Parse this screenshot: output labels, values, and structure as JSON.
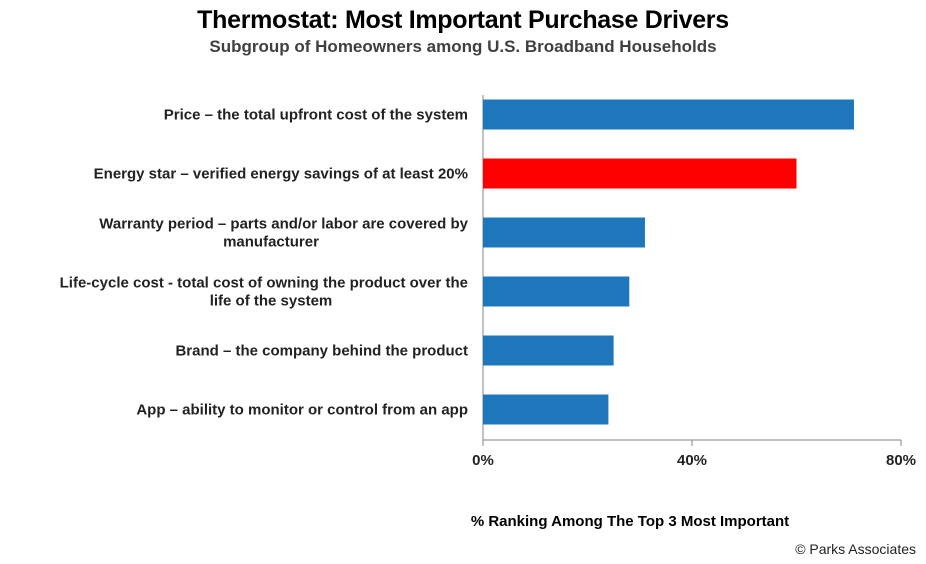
{
  "chart_data": {
    "type": "bar",
    "orientation": "horizontal",
    "title": "Thermostat: Most Important Purchase Drivers",
    "subtitle": "Subgroup of Homeowners among U.S. Broadband Households",
    "categories": [
      [
        "Price – the total upfront cost of the system"
      ],
      [
        "Energy star – verified energy savings of at least 20%"
      ],
      [
        "Warranty period – parts and/or labor are covered by",
        "manufacturer"
      ],
      [
        "Life-cycle cost - total cost of owning the product over the",
        "life of the system"
      ],
      [
        "Brand – the company behind the product"
      ],
      [
        "App – ability to monitor or control from an app"
      ]
    ],
    "values": [
      71,
      60,
      31,
      28,
      25,
      24
    ],
    "bar_colors": [
      "#1F77BB",
      "#FF0000",
      "#1F77BB",
      "#1F77BB",
      "#1F77BB",
      "#1F77BB"
    ],
    "xlim": [
      0,
      80
    ],
    "xticks": [
      0,
      40,
      80
    ],
    "xtick_labels": [
      "0%",
      "40%",
      "80%"
    ],
    "xlabel": "% Ranking Among The Top 3 Most Important",
    "ylabel": "",
    "grid": false,
    "legend": "none"
  },
  "footer": "© Parks Associates"
}
